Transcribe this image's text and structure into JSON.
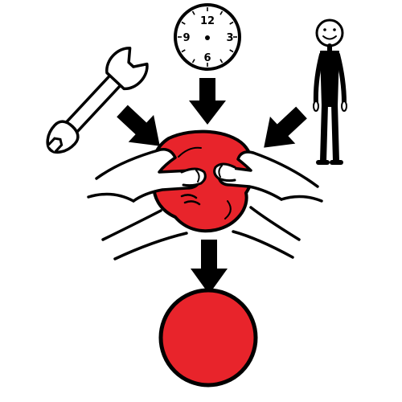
{
  "colors": {
    "background": "#ffffff",
    "outline": "#000000",
    "clay_red": "#e8242b",
    "result_red": "#e8242b",
    "figure_face": "#ffffff"
  },
  "clock": {
    "numbers": {
      "top": "12",
      "right": "3",
      "bottom": "6",
      "left": "9"
    }
  },
  "icons": {
    "tool": "wrench-icon",
    "time": "clock-icon",
    "person": "stick-figure-icon",
    "process": "hands-shaping-clay-icon",
    "result": "red-ball-icon"
  }
}
